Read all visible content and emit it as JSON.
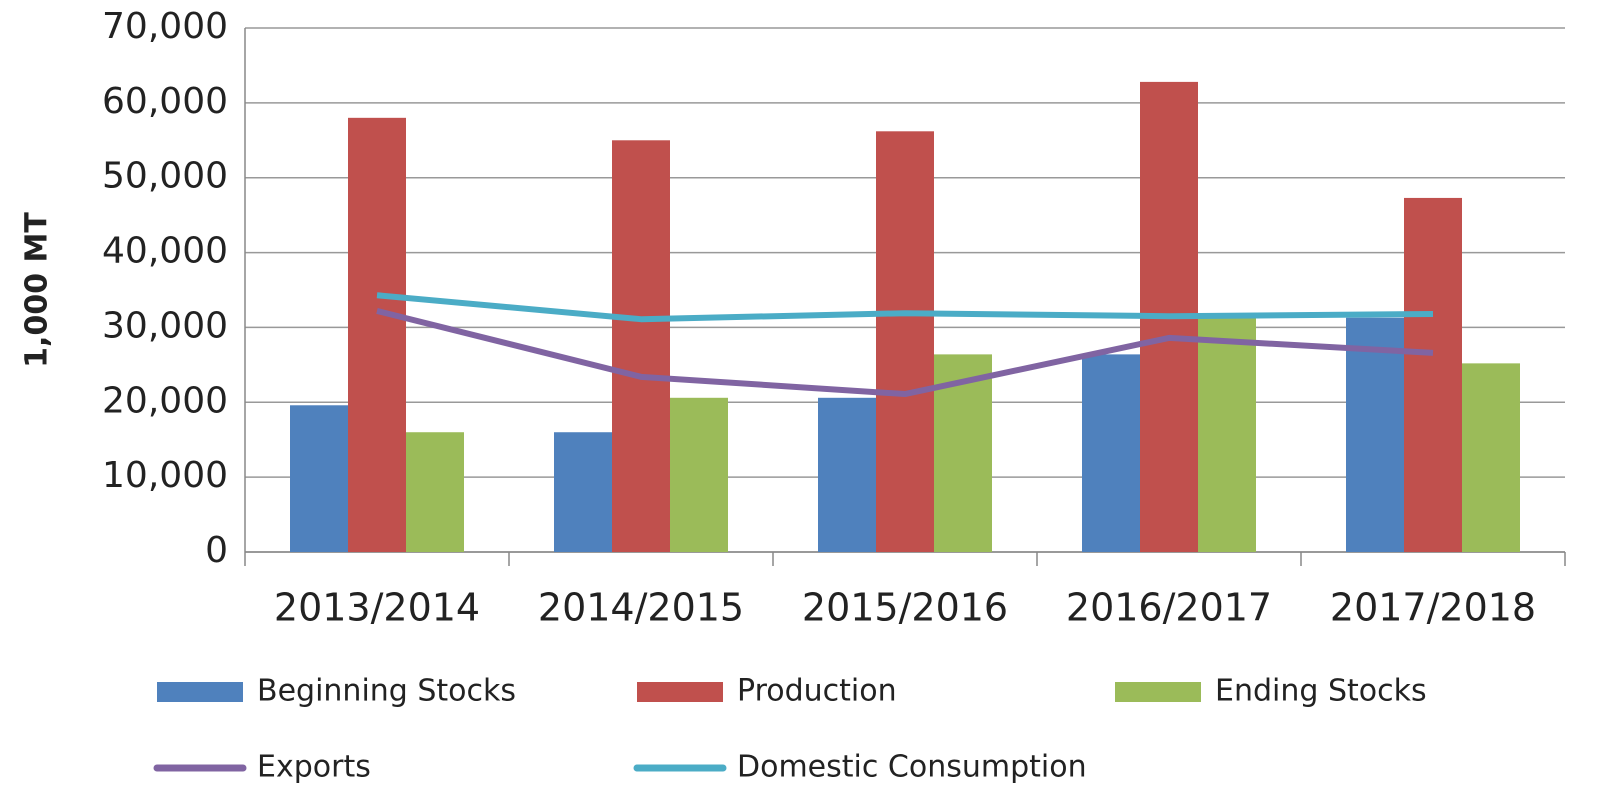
{
  "chart_data": {
    "type": "bar",
    "y_label": "1,000 MT",
    "categories": [
      "2013/2014",
      "2014/2015",
      "2015/2016",
      "2016/2017",
      "2017/2018"
    ],
    "series": [
      {
        "name": "Beginning Stocks",
        "color": "#4f81bd",
        "type": "bar",
        "values": [
          19600,
          16000,
          20600,
          26400,
          31300
        ]
      },
      {
        "name": "Production",
        "color": "#c0504d",
        "type": "bar",
        "values": [
          58000,
          55000,
          56200,
          62800,
          47300
        ]
      },
      {
        "name": "Ending Stocks",
        "color": "#9bbb59",
        "type": "bar",
        "values": [
          16000,
          20600,
          26400,
          31300,
          25200
        ]
      },
      {
        "name": "Exports",
        "color": "#8064a2",
        "type": "line",
        "values": [
          32200,
          23400,
          21100,
          28600,
          26600
        ]
      },
      {
        "name": "Domestic Consumption",
        "color": "#4bacc6",
        "type": "line",
        "values": [
          34300,
          31100,
          31900,
          31500,
          31800
        ]
      }
    ],
    "ylim": [
      0,
      70000
    ],
    "yticks": [
      0,
      {
        "value": 10000,
        "label": "10,000"
      },
      {
        "value": 20000,
        "label": "20,000"
      },
      {
        "value": 30000,
        "label": "30,000"
      },
      {
        "value": 40000,
        "label": "40,000"
      },
      {
        "value": 50000,
        "label": "50,000"
      },
      {
        "value": 60000,
        "label": "60,000"
      },
      {
        "value": 70000,
        "label": "70,000"
      }
    ],
    "grid": true,
    "legend": "bottom"
  }
}
